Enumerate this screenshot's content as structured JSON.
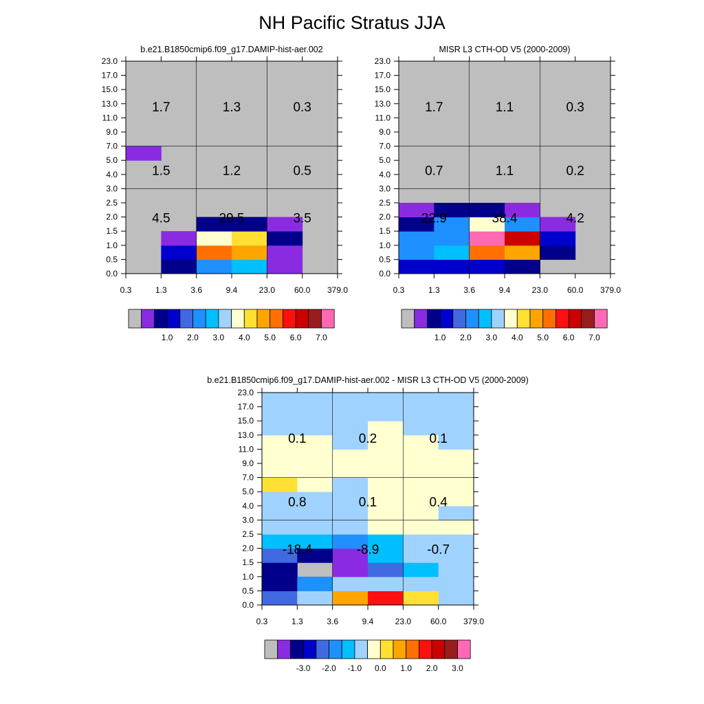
{
  "title": "NH Pacific Stratus JJA",
  "colors": {
    "background_missing": "#bebebe",
    "grid_line": "#000000",
    "palette": [
      "#bebebe",
      "#8a2be2",
      "#00008b",
      "#0000cd",
      "#4169e1",
      "#1e90ff",
      "#00bfff",
      "#a0d2ff",
      "#ffffd0",
      "#ffe033",
      "#ffa500",
      "#ff7000",
      "#ff1010",
      "#cd0000",
      "#9b1c1c",
      "#ff69b4"
    ]
  },
  "chart_data": [
    {
      "type": "heatmap",
      "name": "model",
      "title": "b.e21.B1850cmip6.f09_g17.DAMIP-hist-aer.002",
      "xticks": [
        "0.3",
        "1.3",
        "3.6",
        "9.4",
        "23.0",
        "60.0",
        "379.0"
      ],
      "yticks": [
        "0.0",
        "0.5",
        "1.0",
        "1.5",
        "2.0",
        "2.5",
        "3.0",
        "4.0",
        "5.0",
        "7.0",
        "9.0",
        "11.0",
        "13.0",
        "15.0",
        "17.0",
        "23.0"
      ],
      "colorbar_labels": [
        "1.0",
        "2.0",
        "3.0",
        "4.0",
        "5.0",
        "6.0",
        "7.0"
      ],
      "color_index_grid_bottom_to_top": [
        [
          0,
          2,
          5,
          6,
          1,
          0
        ],
        [
          0,
          3,
          11,
          10,
          1,
          0
        ],
        [
          0,
          1,
          8,
          9,
          2,
          0
        ],
        [
          0,
          0,
          2,
          2,
          1,
          0
        ],
        [
          0,
          0,
          0,
          0,
          0,
          0
        ],
        [
          0,
          0,
          0,
          0,
          0,
          0
        ],
        [
          0,
          0,
          0,
          0,
          0,
          0
        ],
        [
          0,
          0,
          0,
          0,
          0,
          0
        ],
        [
          1,
          0,
          0,
          0,
          0,
          0
        ],
        [
          0,
          0,
          0,
          0,
          0,
          0
        ],
        [
          0,
          0,
          0,
          0,
          0,
          0
        ],
        [
          0,
          0,
          0,
          0,
          0,
          0
        ],
        [
          0,
          0,
          0,
          0,
          0,
          0
        ],
        [
          0,
          0,
          0,
          0,
          0,
          0
        ],
        [
          0,
          0,
          0,
          0,
          0,
          0
        ]
      ],
      "region_sums": [
        {
          "label": "1.7",
          "col": 0,
          "row": 2
        },
        {
          "label": "1.3",
          "col": 1,
          "row": 2
        },
        {
          "label": "0.3",
          "col": 2,
          "row": 2
        },
        {
          "label": "1.5",
          "col": 0,
          "row": 1
        },
        {
          "label": "1.2",
          "col": 1,
          "row": 1
        },
        {
          "label": "0.5",
          "col": 2,
          "row": 1
        },
        {
          "label": "4.5",
          "col": 0,
          "row": 0
        },
        {
          "label": "29.5",
          "col": 1,
          "row": 0
        },
        {
          "label": "3.5",
          "col": 2,
          "row": 0
        }
      ]
    },
    {
      "type": "heatmap",
      "name": "obs",
      "title": "MISR L3 CTH-OD V5 (2000-2009)",
      "xticks": [
        "0.3",
        "1.3",
        "3.6",
        "9.4",
        "23.0",
        "60.0",
        "379.0"
      ],
      "yticks": [
        "0.0",
        "0.5",
        "1.0",
        "1.5",
        "2.0",
        "2.5",
        "3.0",
        "4.0",
        "5.0",
        "7.0",
        "9.0",
        "11.0",
        "13.0",
        "15.0",
        "17.0",
        "23.0"
      ],
      "colorbar_labels": [
        "1.0",
        "2.0",
        "3.0",
        "4.0",
        "5.0",
        "6.0",
        "7.0"
      ],
      "color_index_grid_bottom_to_top": [
        [
          3,
          3,
          3,
          2,
          0,
          0
        ],
        [
          5,
          6,
          11,
          10,
          2,
          0
        ],
        [
          5,
          5,
          15,
          13,
          3,
          0
        ],
        [
          2,
          5,
          8,
          5,
          1,
          0
        ],
        [
          1,
          2,
          2,
          1,
          0,
          0
        ],
        [
          0,
          0,
          0,
          0,
          0,
          0
        ],
        [
          0,
          0,
          0,
          0,
          0,
          0
        ],
        [
          0,
          0,
          0,
          0,
          0,
          0
        ],
        [
          0,
          0,
          0,
          0,
          0,
          0
        ],
        [
          0,
          0,
          0,
          0,
          0,
          0
        ],
        [
          0,
          0,
          0,
          0,
          0,
          0
        ],
        [
          0,
          0,
          0,
          0,
          0,
          0
        ],
        [
          0,
          0,
          0,
          0,
          0,
          0
        ],
        [
          0,
          0,
          0,
          0,
          0,
          0
        ],
        [
          0,
          0,
          0,
          0,
          0,
          0
        ]
      ],
      "region_sums": [
        {
          "label": "1.7",
          "col": 0,
          "row": 2
        },
        {
          "label": "1.1",
          "col": 1,
          "row": 2
        },
        {
          "label": "0.3",
          "col": 2,
          "row": 2
        },
        {
          "label": "0.7",
          "col": 0,
          "row": 1
        },
        {
          "label": "1.1",
          "col": 1,
          "row": 1
        },
        {
          "label": "0.2",
          "col": 2,
          "row": 1
        },
        {
          "label": "22.9",
          "col": 0,
          "row": 0
        },
        {
          "label": "38.4",
          "col": 1,
          "row": 0
        },
        {
          "label": "4.2",
          "col": 2,
          "row": 0
        }
      ]
    },
    {
      "type": "heatmap",
      "name": "difference",
      "title": "b.e21.B1850cmip6.f09_g17.DAMIP-hist-aer.002 - MISR L3 CTH-OD V5 (2000-2009)",
      "xticks": [
        "0.3",
        "1.3",
        "3.6",
        "9.4",
        "23.0",
        "60.0",
        "379.0"
      ],
      "yticks": [
        "0.0",
        "0.5",
        "1.0",
        "1.5",
        "2.0",
        "2.5",
        "3.0",
        "4.0",
        "5.0",
        "7.0",
        "9.0",
        "11.0",
        "13.0",
        "15.0",
        "17.0",
        "23.0"
      ],
      "colorbar_labels": [
        "-3.0",
        "-2.0",
        "-1.0",
        "0.0",
        "1.0",
        "2.0",
        "3.0"
      ],
      "color_index_grid_bottom_to_top": [
        [
          4,
          7,
          10,
          12,
          9,
          7
        ],
        [
          2,
          5,
          7,
          7,
          7,
          7
        ],
        [
          2,
          0,
          1,
          4,
          6,
          7
        ],
        [
          4,
          2,
          1,
          6,
          7,
          7
        ],
        [
          6,
          6,
          5,
          6,
          7,
          7
        ],
        [
          7,
          7,
          7,
          8,
          8,
          8
        ],
        [
          7,
          7,
          7,
          8,
          8,
          7
        ],
        [
          7,
          7,
          7,
          8,
          8,
          8
        ],
        [
          9,
          8,
          7,
          8,
          8,
          8
        ],
        [
          8,
          8,
          8,
          8,
          8,
          8
        ],
        [
          8,
          8,
          8,
          8,
          8,
          8
        ],
        [
          8,
          8,
          7,
          8,
          8,
          7
        ],
        [
          7,
          7,
          7,
          8,
          7,
          7
        ],
        [
          7,
          7,
          7,
          7,
          7,
          7
        ],
        [
          7,
          7,
          7,
          7,
          7,
          7
        ]
      ],
      "region_sums": [
        {
          "label": "0.1",
          "col": 0,
          "row": 2
        },
        {
          "label": "0.2",
          "col": 1,
          "row": 2
        },
        {
          "label": "0.1",
          "col": 2,
          "row": 2
        },
        {
          "label": "0.8",
          "col": 0,
          "row": 1
        },
        {
          "label": "0.1",
          "col": 1,
          "row": 1
        },
        {
          "label": "0.4",
          "col": 2,
          "row": 1
        },
        {
          "label": "-18.4",
          "col": 0,
          "row": 0
        },
        {
          "label": "-8.9",
          "col": 1,
          "row": 0
        },
        {
          "label": "-0.7",
          "col": 2,
          "row": 0
        }
      ]
    }
  ]
}
